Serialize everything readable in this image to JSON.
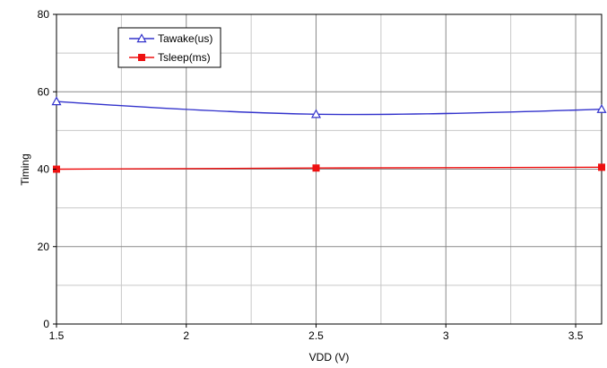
{
  "chart_data": {
    "type": "line",
    "xlabel": "VDD (V)",
    "ylabel": "Timing",
    "xlim": [
      1.5,
      3.6
    ],
    "ylim": [
      0,
      80
    ],
    "x_ticks": [
      1.5,
      2,
      2.5,
      3,
      3.5
    ],
    "x_tick_labels": [
      "1.5",
      "2",
      "2.5",
      "3",
      "3.5"
    ],
    "y_ticks": [
      0,
      20,
      40,
      60,
      80
    ],
    "y_tick_labels": [
      "0",
      "20",
      "40",
      "60",
      "80"
    ],
    "x_minor_gridlines": [
      1.75,
      2.25,
      2.75,
      3.25
    ],
    "y_minor_gridlines": [
      10,
      30,
      50,
      70
    ],
    "grid": true,
    "legend_position": "top-left",
    "series": [
      {
        "name": "Tawake(us)",
        "color": "#3333cc",
        "marker": "triangle-open",
        "x": [
          1.5,
          2.5,
          3.6
        ],
        "y": [
          57.5,
          54.2,
          55.5
        ]
      },
      {
        "name": "Tsleep(ms)",
        "color": "#ee1111",
        "marker": "square-filled",
        "x": [
          1.5,
          2.5,
          3.6
        ],
        "y": [
          40.0,
          40.3,
          40.5
        ]
      }
    ]
  }
}
